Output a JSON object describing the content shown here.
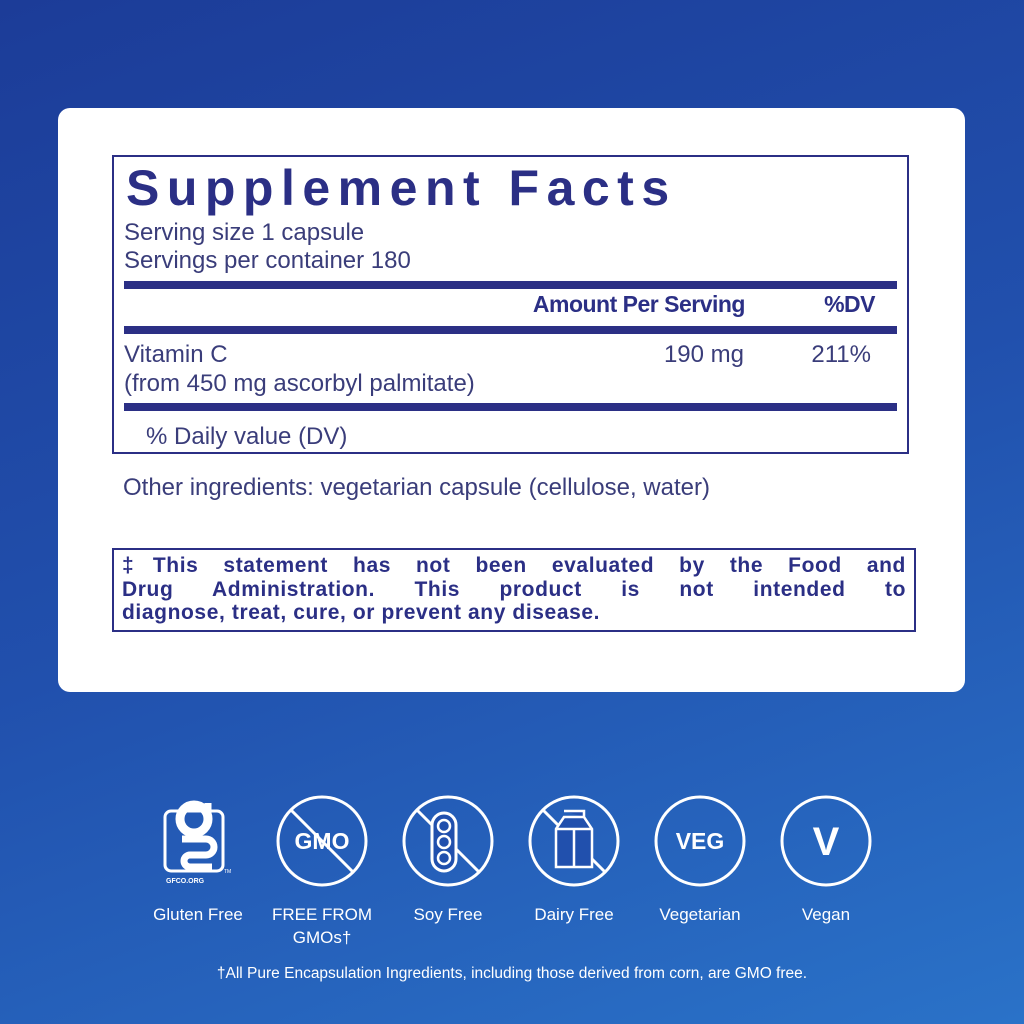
{
  "facts": {
    "title": "Supplement Facts",
    "serving_size": "Serving size  1 capsule",
    "servings_per_container": "Servings per container  180",
    "col_amount": "Amount Per Serving",
    "col_dv": "%DV",
    "ingredient": {
      "name": "Vitamin C",
      "source": "(from 450 mg ascorbyl palmitate)",
      "amount": "190 mg",
      "dv": "211%"
    },
    "dv_note": "% Daily value (DV)"
  },
  "other_ingredients": "Other ingredients: vegetarian capsule (cellulose, water)",
  "disclaimer": [
    "‡This statement has not been evaluated by the Food and",
    "Drug Administration. This product is not intended to",
    "diagnose, treat, cure, or prevent any disease."
  ],
  "badges": [
    {
      "icon": "gluten-free-gfco-icon",
      "label": "Gluten Free",
      "logo_text": "GFCO.ORG"
    },
    {
      "icon": "gmo-free-icon",
      "label": "FREE FROM",
      "label2": "GMOs†",
      "logo_text": "GMO"
    },
    {
      "icon": "soy-free-icon",
      "label": "Soy Free"
    },
    {
      "icon": "dairy-free-icon",
      "label": "Dairy Free"
    },
    {
      "icon": "vegetarian-icon",
      "label": "Vegetarian",
      "logo_text": "VEG"
    },
    {
      "icon": "vegan-icon",
      "label": "Vegan",
      "logo_text": "V"
    }
  ],
  "footnote": "†All Pure Encapsulation Ingredients, including those derived from corn, are GMO free.",
  "colors": {
    "navy": "#2b2f85",
    "background": "#2150ad"
  }
}
